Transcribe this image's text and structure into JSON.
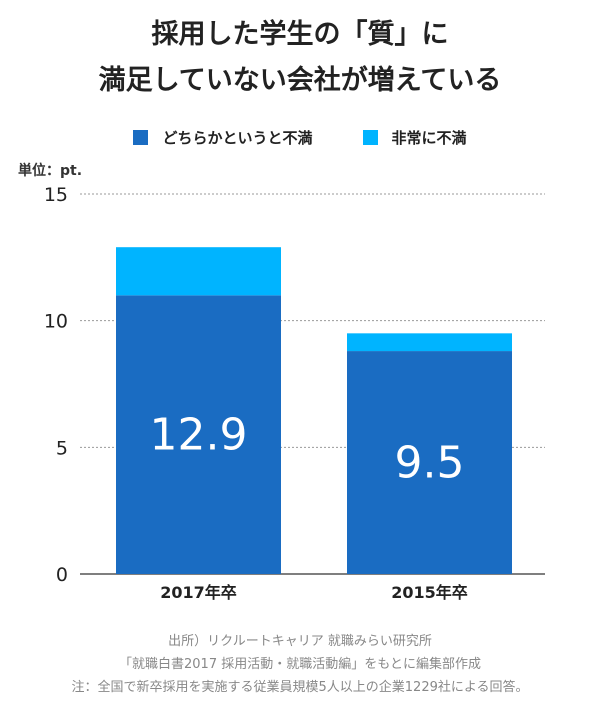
{
  "chart_data": {
    "type": "bar",
    "stacked": true,
    "title": [
      "採用した学生の「質」に",
      "満足していない会社が増えている"
    ],
    "unit_label": "単位：pt.",
    "categories": [
      "2017年卒",
      "2015年卒"
    ],
    "series": [
      {
        "name": "どちらかというと不満",
        "color": "#1a6cc2",
        "values": [
          11.0,
          8.8
        ]
      },
      {
        "name": "非常に不満",
        "color": "#00b4ff",
        "values": [
          1.9,
          0.7
        ]
      }
    ],
    "totals_labels": [
      "12.9",
      "9.5"
    ],
    "ylim": [
      0,
      15
    ],
    "yticks": [
      "0",
      "5",
      "10",
      "15"
    ],
    "grid": true,
    "legend_position": "top"
  },
  "source": [
    "出所）リクルートキャリア 就職みらい研究所",
    "「就職白書2017 採用活動・就職活動編」をもとに編集部作成",
    "注：全国で新卒採用を実施する従業員規模5人以上の企業1229社による回答。"
  ]
}
